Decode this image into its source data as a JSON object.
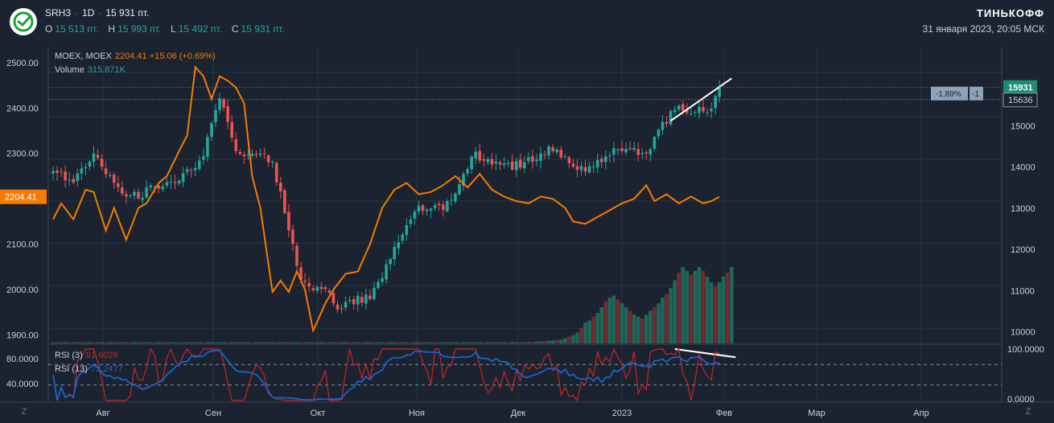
{
  "header": {
    "ticker": "SRH3",
    "interval": "1D",
    "price": "15 931 пт.",
    "ohlc": [
      {
        "key": "O",
        "value": "15 513 пт."
      },
      {
        "key": "H",
        "value": "15 993 пт."
      },
      {
        "key": "L",
        "value": "15 492 пт."
      },
      {
        "key": "C",
        "value": "15 931 пт."
      }
    ],
    "brand": "ТИНЬКОФФ",
    "timestamp": "31 января 2023, 20:05 МСК"
  },
  "legend": {
    "moex_name": "MOEX, MOEX",
    "moex_value": "2204.41",
    "moex_change": "+15.06 (+0.69%)",
    "volume_name": "Volume",
    "volume_value": "315.871K",
    "rsi3_name": "RSI (3)",
    "rsi3_value": "91.6029",
    "rsi13_name": "RSI (13)",
    "rsi13_value": "72.2477"
  },
  "badges": {
    "moex_current": "2204.41",
    "price_current": "15931",
    "price_ref": "15636",
    "pct": "-1,89%",
    "count": "-1"
  },
  "corner_label": "Z",
  "colors": {
    "background": "#1b2230",
    "up": "#26a69a",
    "down": "#ef5350",
    "moex_line": "#f57c00",
    "rsi3": "#c62828",
    "rsi13": "#1e63c8",
    "grid": "#2a3442"
  },
  "chart_data": {
    "type": "candlestick",
    "left_axis": {
      "label": "MOEX",
      "ticks": [
        "2500.00",
        "2400.00",
        "2300.00",
        "2200.00",
        "2100.00",
        "2000.00",
        "1900.00"
      ],
      "range": [
        1880,
        2535
      ]
    },
    "right_axis": {
      "label": "SRH3",
      "ticks": [
        "15000",
        "14000",
        "13000",
        "12000",
        "11000",
        "10000"
      ],
      "range": [
        9700,
        16920
      ]
    },
    "x_axis": {
      "ticks": [
        "Авг",
        "Сен",
        "Окт",
        "Ноя",
        "Дек",
        "2023",
        "Фев",
        "Мар",
        "Апр"
      ]
    },
    "rsi_panel": {
      "left_ticks": [
        "80.0000",
        "40.0000"
      ],
      "right_ticks": [
        "100.0000",
        "0.0000"
      ],
      "levels": [
        70,
        30
      ]
    },
    "series": [
      {
        "name": "SRH3",
        "kind": "candles",
        "close_anchors": [
          [
            0,
            13900
          ],
          [
            5,
            13620
          ],
          [
            10,
            14280
          ],
          [
            14,
            13800
          ],
          [
            18,
            13300
          ],
          [
            22,
            13350
          ],
          [
            26,
            13580
          ],
          [
            30,
            13650
          ],
          [
            34,
            13900
          ],
          [
            37,
            14300
          ],
          [
            41,
            15700
          ],
          [
            45,
            14300
          ],
          [
            50,
            14350
          ],
          [
            54,
            14120
          ],
          [
            57,
            12900
          ],
          [
            61,
            11300
          ],
          [
            64,
            11000
          ],
          [
            67,
            11050
          ],
          [
            70,
            10600
          ],
          [
            74,
            10750
          ],
          [
            78,
            10850
          ],
          [
            82,
            11600
          ],
          [
            86,
            12400
          ],
          [
            90,
            12950
          ],
          [
            93,
            13000
          ],
          [
            96,
            12950
          ],
          [
            100,
            13500
          ],
          [
            103,
            14300
          ],
          [
            106,
            14200
          ],
          [
            110,
            14000
          ],
          [
            114,
            14050
          ],
          [
            118,
            14200
          ],
          [
            122,
            14450
          ],
          [
            126,
            14200
          ],
          [
            130,
            13950
          ],
          [
            134,
            14150
          ],
          [
            138,
            14350
          ],
          [
            142,
            14400
          ],
          [
            146,
            14280
          ],
          [
            150,
            15000
          ],
          [
            153,
            15430
          ],
          [
            156,
            15300
          ],
          [
            159,
            15370
          ],
          [
            162,
            15330
          ],
          [
            164,
            15931
          ]
        ]
      },
      {
        "name": "MOEX, MOEX",
        "kind": "line",
        "anchors": [
          [
            0,
            2155
          ],
          [
            2,
            2190
          ],
          [
            5,
            2155
          ],
          [
            8,
            2220
          ],
          [
            10,
            2215
          ],
          [
            13,
            2130
          ],
          [
            15,
            2180
          ],
          [
            18,
            2110
          ],
          [
            21,
            2180
          ],
          [
            23,
            2190
          ],
          [
            26,
            2235
          ],
          [
            28,
            2250
          ],
          [
            31,
            2305
          ],
          [
            33,
            2340
          ],
          [
            35,
            2490
          ],
          [
            37,
            2470
          ],
          [
            39,
            2420
          ],
          [
            41,
            2470
          ],
          [
            43,
            2460
          ],
          [
            45,
            2445
          ],
          [
            47,
            2410
          ],
          [
            49,
            2250
          ],
          [
            51,
            2180
          ],
          [
            54,
            1995
          ],
          [
            56,
            2020
          ],
          [
            58,
            1995
          ],
          [
            60,
            2040
          ],
          [
            62,
            2000
          ],
          [
            64,
            1910
          ],
          [
            67,
            1970
          ],
          [
            69,
            2000
          ],
          [
            72,
            2035
          ],
          [
            75,
            2040
          ],
          [
            78,
            2100
          ],
          [
            81,
            2180
          ],
          [
            84,
            2220
          ],
          [
            87,
            2235
          ],
          [
            90,
            2210
          ],
          [
            93,
            2215
          ],
          [
            96,
            2230
          ],
          [
            99,
            2250
          ],
          [
            102,
            2225
          ],
          [
            105,
            2255
          ],
          [
            108,
            2220
          ],
          [
            111,
            2205
          ],
          [
            114,
            2195
          ],
          [
            117,
            2190
          ],
          [
            120,
            2205
          ],
          [
            123,
            2200
          ],
          [
            126,
            2180
          ],
          [
            128,
            2150
          ],
          [
            131,
            2145
          ],
          [
            134,
            2160
          ],
          [
            137,
            2175
          ],
          [
            140,
            2190
          ],
          [
            143,
            2200
          ],
          [
            146,
            2230
          ],
          [
            148,
            2195
          ],
          [
            151,
            2210
          ],
          [
            154,
            2190
          ],
          [
            157,
            2205
          ],
          [
            160,
            2190
          ],
          [
            162,
            2195
          ],
          [
            164,
            2204
          ]
        ]
      },
      {
        "name": "Volume",
        "kind": "bars",
        "values": [
          0.3,
          0.3,
          0.3,
          0.3,
          0.3,
          0.3,
          0.3,
          0.3,
          0.3,
          0.3,
          0.3,
          0.3,
          0.3,
          0.3,
          0.3,
          0.3,
          0.3,
          0.3,
          0.3,
          0.3,
          0.3,
          0.3,
          0.3,
          0.3,
          0.3,
          0.3,
          0.3,
          0.3,
          0.3,
          0.3,
          0.3,
          0.3,
          0.3,
          0.3,
          0.3,
          0.3,
          0.3,
          0.3,
          0.3,
          0.3,
          0.3,
          0.3,
          0.3,
          0.3,
          0.3,
          0.3,
          0.3,
          0.3,
          0.3,
          0.3,
          0.3,
          0.3,
          0.3,
          0.3,
          0.3,
          0.3,
          0.3,
          0.3,
          0.3,
          0.3,
          0.3,
          0.3,
          0.3,
          0.3,
          0.3,
          0.3,
          0.3,
          0.3,
          0.3,
          0.3,
          0.3,
          0.3,
          0.3,
          0.3,
          0.3,
          0.3,
          0.3,
          0.3,
          0.3,
          0.3,
          0.3,
          0.3,
          0.3,
          0.3,
          0.3,
          0.3,
          0.3,
          0.3,
          0.3,
          0.3,
          0.3,
          0.3,
          0.3,
          0.3,
          0.3,
          0.3,
          0.3,
          0.3,
          0.3,
          0.3,
          0.3,
          0.3,
          0.3,
          0.3,
          0.3,
          0.3,
          0.3,
          0.3,
          0.3,
          0.3,
          0.3,
          0.3,
          0.3,
          0.3,
          0.3,
          0.3,
          0.3,
          0.3,
          0.4,
          0.5,
          0.5,
          0.6,
          0.7,
          0.8,
          0.9,
          1.0,
          1.4,
          1.8,
          2.2,
          2.8,
          4.0,
          5.5,
          6.0,
          7.0,
          8.0,
          9.5,
          11.0,
          12.0,
          12.5,
          11.5,
          10.5,
          9.5,
          8.5,
          7.5,
          7.0,
          6.5,
          7.5,
          8.5,
          9.5,
          10.5,
          12.0,
          13.0,
          14.5,
          16.5,
          18.5,
          20.0,
          19.0,
          18.0,
          19.0,
          20.0,
          19.0,
          17.5,
          16.0,
          15.0,
          16.0,
          17.5,
          18.5,
          20.0
        ],
        "units": "relative"
      },
      {
        "name": "RSI (3)",
        "kind": "oscillator",
        "last": 91.6029
      },
      {
        "name": "RSI (13)",
        "kind": "oscillator",
        "last": 72.2477
      }
    ],
    "trendlines": [
      {
        "panel": "price",
        "from": [
          152,
          15120
        ],
        "to": [
          167,
          16150
        ]
      },
      {
        "panel": "rsi",
        "from": [
          153,
          100
        ],
        "to": [
          168,
          84
        ]
      }
    ]
  }
}
